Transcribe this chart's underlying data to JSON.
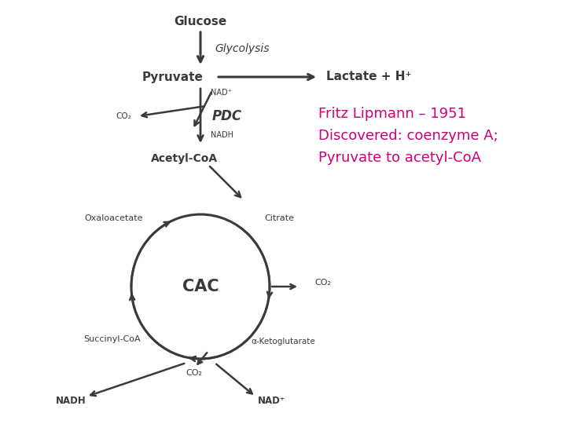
{
  "background_color": "#ffffff",
  "text_color": "#3a3a3a",
  "arrow_color": "#3a3a3a",
  "highlight_color": "#cc0077",
  "glucose": "Glucose",
  "glycolysis_label": "Glycolysis",
  "pyruvate_label": "Pyruvate",
  "lactate_label": "Lactate + H⁺",
  "nad_plus_1": "NAD⁺",
  "co2_1": "CO₂",
  "pdc_label": "PDC",
  "nadh_1": "NADH",
  "acetyl_coa": "Acetyl-CoA",
  "oxaloacetate": "Oxaloacetate",
  "citrate": "Citrate",
  "cac_label": "CAC",
  "co2_2": "CO₂",
  "alpha_kg": "α-Ketoglutarate",
  "succinyl_coa": "Succinyl-CoA",
  "co2_3": "CO₂",
  "nadh_2": "NADH",
  "nad_plus_2": "NAD⁺",
  "annotation_line1": "Fritz Lipmann – 1951",
  "annotation_line2": "Discovered: coenzyme A;",
  "annotation_line3": "Pyruvate to acetyl-CoA",
  "fig_width": 7.2,
  "fig_height": 5.4,
  "dpi": 100
}
